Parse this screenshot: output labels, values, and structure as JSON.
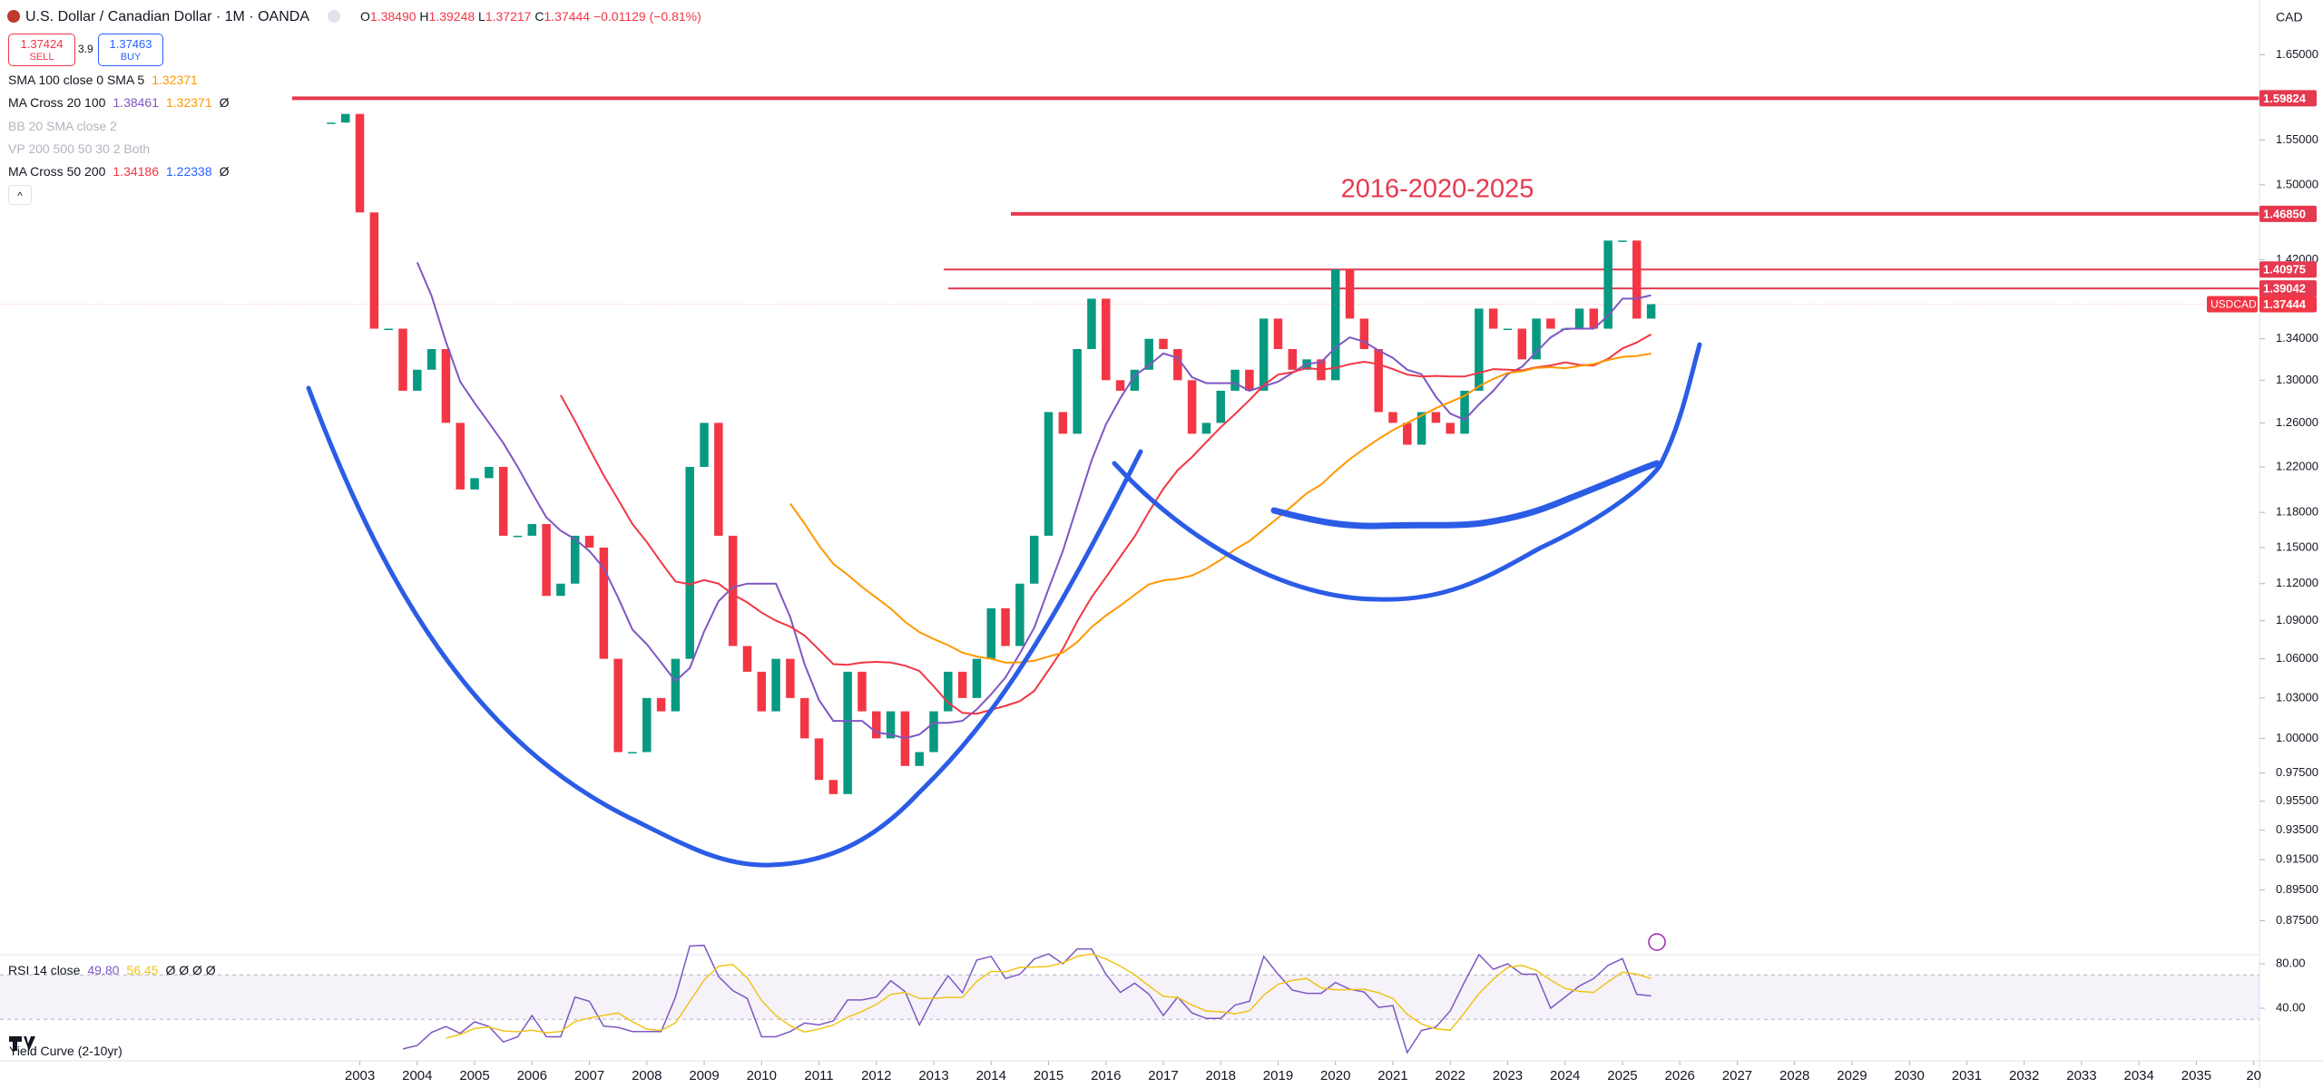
{
  "toolbar": {
    "symbol": "U.S. Dollar / Canadian Dollar · 1M · OANDA",
    "ohlc": [
      {
        "label": "O",
        "value": "1.38490"
      },
      {
        "label": "H",
        "value": "1.39248"
      },
      {
        "label": "L",
        "value": "1.37217"
      },
      {
        "label": "C",
        "value": "1.37444"
      }
    ],
    "change": "−0.01129 (−0.81%)",
    "sell_price": "1.37424",
    "sell": "SELL",
    "spread": "3.9",
    "buy_price": "1.37463",
    "buy": "BUY",
    "currency": "CAD"
  },
  "indicators": [
    {
      "name": "SMA 100 close 0 SMA 5",
      "values": [
        "1.32371"
      ],
      "colors": [
        "#ff9800"
      ]
    },
    {
      "name": "MA Cross 20 100",
      "values": [
        "1.38461",
        "1.32371"
      ],
      "colors": [
        "#7e57c2",
        "#ff9800"
      ],
      "suffix": "Ø"
    },
    {
      "name": "BB 20 SMA close 2"
    },
    {
      "name": "VP 200 500 50 30 2 Both"
    },
    {
      "name": "MA Cross 50 200",
      "values": [
        "1.34186",
        "1.22338"
      ],
      "colors": [
        "#f23645",
        "#2962ff"
      ],
      "suffix": "Ø"
    }
  ],
  "rsi_legend": {
    "name": "RSI 14 close",
    "values": [
      "49.80",
      "56.45"
    ],
    "colors": [
      "#7e57c2",
      "#f0c419"
    ],
    "suffix": "Ø Ø Ø Ø"
  },
  "yield_legend": "Yield Curve (2-10yr)",
  "chart_data": {
    "type": "candlestick",
    "log_scale": true,
    "grid": false,
    "up_color": "#089981",
    "down_color": "#f23645",
    "x": [
      2002.5,
      2002.75,
      2003,
      2003.25,
      2003.5,
      2003.75,
      2004,
      2004.25,
      2004.5,
      2004.75,
      2005,
      2005.25,
      2005.5,
      2005.75,
      2006,
      2006.25,
      2006.5,
      2006.75,
      2007,
      2007.25,
      2007.5,
      2007.75,
      2008,
      2008.25,
      2008.5,
      2008.75,
      2009,
      2009.25,
      2009.5,
      2009.75,
      2010,
      2010.25,
      2010.5,
      2010.75,
      2011,
      2011.25,
      2011.5,
      2011.75,
      2012,
      2012.25,
      2012.5,
      2012.75,
      2013,
      2013.25,
      2013.5,
      2013.75,
      2014,
      2014.25,
      2014.5,
      2014.75,
      2015,
      2015.25,
      2015.5,
      2015.75,
      2016,
      2016.25,
      2016.5,
      2016.75,
      2017,
      2017.25,
      2017.5,
      2017.75,
      2018,
      2018.25,
      2018.5,
      2018.75,
      2019,
      2019.25,
      2019.5,
      2019.75,
      2020,
      2020.25,
      2020.5,
      2020.75,
      2021,
      2021.25,
      2021.5,
      2021.75,
      2022,
      2022.25,
      2022.5,
      2022.75,
      2023,
      2023.25,
      2023.5,
      2023.75,
      2024,
      2024.25,
      2024.5,
      2024.75,
      2025,
      2025.25,
      2025.5
    ],
    "values": [
      1.57,
      1.58,
      1.47,
      1.35,
      1.35,
      1.29,
      1.31,
      1.33,
      1.26,
      1.2,
      1.21,
      1.22,
      1.16,
      1.16,
      1.17,
      1.11,
      1.12,
      1.16,
      1.15,
      1.06,
      0.99,
      0.99,
      1.03,
      1.02,
      1.06,
      1.22,
      1.26,
      1.16,
      1.07,
      1.05,
      1.02,
      1.06,
      1.03,
      1.0,
      0.97,
      0.96,
      1.05,
      1.02,
      1.0,
      1.02,
      0.98,
      0.99,
      1.02,
      1.05,
      1.03,
      1.06,
      1.1,
      1.07,
      1.12,
      1.16,
      1.27,
      1.25,
      1.33,
      1.38,
      1.3,
      1.29,
      1.31,
      1.34,
      1.33,
      1.3,
      1.25,
      1.26,
      1.29,
      1.31,
      1.29,
      1.36,
      1.33,
      1.31,
      1.32,
      1.3,
      1.41,
      1.36,
      1.33,
      1.27,
      1.26,
      1.24,
      1.27,
      1.26,
      1.25,
      1.29,
      1.37,
      1.35,
      1.35,
      1.32,
      1.36,
      1.35,
      1.35,
      1.37,
      1.35,
      1.44,
      1.44,
      1.36,
      1.37444
    ],
    "last_label": "USDCAD",
    "xlim": [
      1996.73,
      2036.1
    ],
    "ylim": [
      0.854,
      1.7175
    ],
    "xticks": [
      2003,
      2004,
      2005,
      2006,
      2007,
      2008,
      2009,
      2010,
      2011,
      2012,
      2013,
      2014,
      2015,
      2016,
      2017,
      2018,
      2019,
      2020,
      2021,
      2022,
      2023,
      2024,
      2025,
      2026,
      2027,
      2028,
      2029,
      2030,
      2031,
      2032,
      2033,
      2034,
      2035,
      {
        "value": 2036,
        "label": "20"
      }
    ],
    "yticks": [
      {
        "value": 1.65,
        "label": "1.65000"
      },
      {
        "value": 1.55,
        "label": "1.55000"
      },
      {
        "value": 1.5,
        "label": "1.50000"
      },
      {
        "value": 1.42,
        "label": "1.42000"
      },
      {
        "value": 1.34,
        "label": "1.34000"
      },
      {
        "value": 1.3,
        "label": "1.30000"
      },
      {
        "value": 1.26,
        "label": "1.26000"
      },
      {
        "value": 1.22,
        "label": "1.22000"
      },
      {
        "value": 1.18,
        "label": "1.18000"
      },
      {
        "value": 1.15,
        "label": "1.15000"
      },
      {
        "value": 1.12,
        "label": "1.12000"
      },
      {
        "value": 1.09,
        "label": "1.09000"
      },
      {
        "value": 1.06,
        "label": "1.06000"
      },
      {
        "value": 1.03,
        "label": "1.03000"
      },
      {
        "value": 1.0,
        "label": "1.00000"
      },
      {
        "value": 0.975,
        "label": "0.97500"
      },
      {
        "value": 0.955,
        "label": "0.95500"
      },
      {
        "value": 0.935,
        "label": "0.93500"
      },
      {
        "value": 0.915,
        "label": "0.91500"
      },
      {
        "value": 0.895,
        "label": "0.89500"
      },
      {
        "value": 0.875,
        "label": "0.87500"
      }
    ],
    "levels": [
      {
        "value": 1.59824,
        "color": "#e53950"
      },
      {
        "value": 1.4685,
        "label": "1.46850",
        "color": "#e53950"
      },
      {
        "value": 1.40975,
        "color": "#e53950"
      },
      {
        "value": 1.39042,
        "color": "#e53950"
      }
    ],
    "annotation": "2016-2020-2025",
    "rsi": {
      "ylim": [
        0,
        90
      ],
      "yticks": [
        {
          "value": 80,
          "label": "80.00"
        },
        {
          "value": 40,
          "label": "40.00"
        }
      ],
      "band": [
        30,
        70
      ],
      "color": "#7e57c2",
      "ma_color": "#f0c419"
    }
  }
}
